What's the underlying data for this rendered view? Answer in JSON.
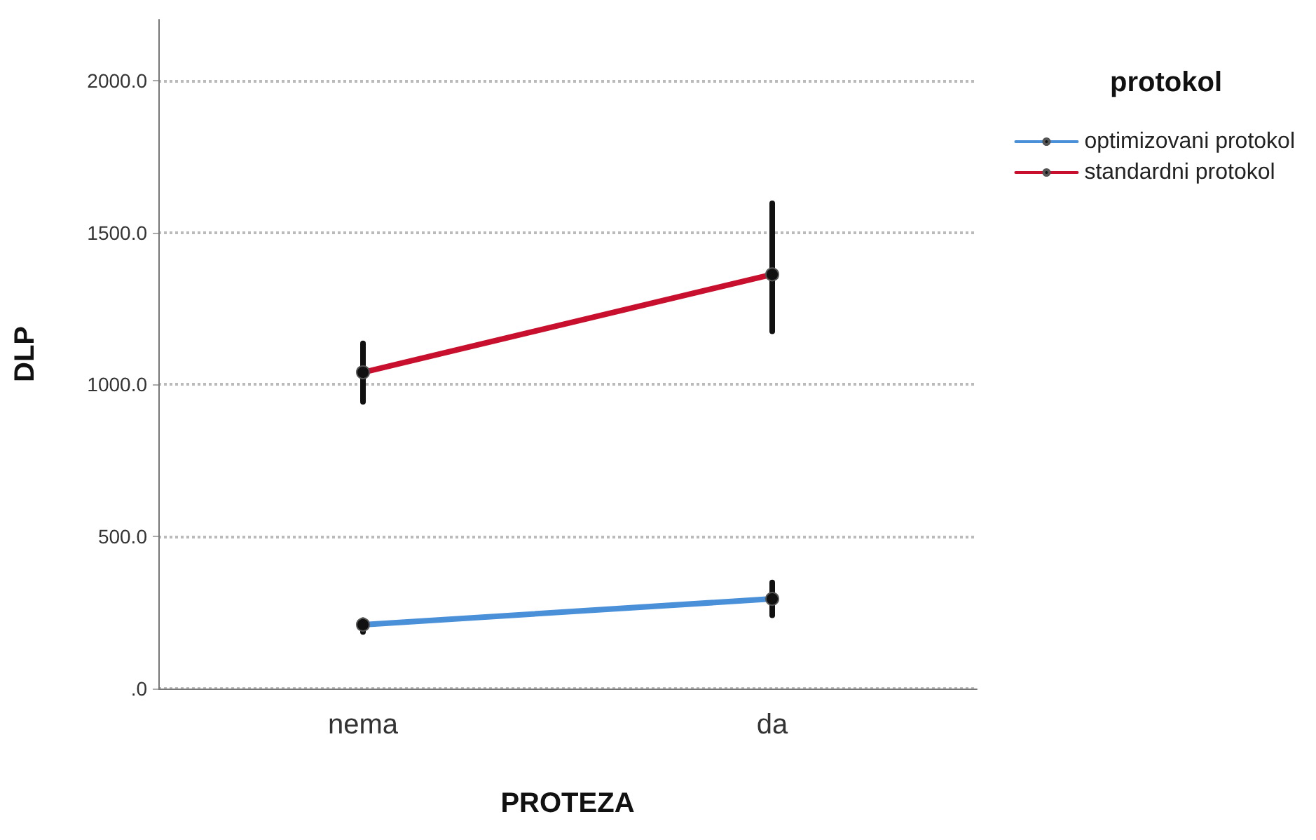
{
  "chart_data": {
    "type": "line",
    "xlabel": "PROTEZA",
    "ylabel": "DLP",
    "legend_title": "protokol",
    "categories": [
      "nema",
      "da"
    ],
    "series": [
      {
        "name": "optimizovani protokol",
        "color": "#4a90d9",
        "values": [
          210,
          295
        ],
        "errors": [
          [
            186,
            225
          ],
          [
            241,
            349
          ]
        ]
      },
      {
        "name": "standardni protokol",
        "color": "#c8102e",
        "values": [
          1040,
          1362
        ],
        "errors": [
          [
            943,
            1135
          ],
          [
            1175,
            1596
          ]
        ]
      }
    ],
    "ylim": [
      0,
      2200
    ],
    "yticks": [
      {
        "value": 0,
        "label": ".0"
      },
      {
        "value": 500,
        "label": "500.0"
      },
      {
        "value": 1000,
        "label": "1000.0"
      },
      {
        "value": 1500,
        "label": "1500.0"
      },
      {
        "value": 2000,
        "label": "2000.0"
      }
    ],
    "grid": "y",
    "legend": "right",
    "marker": "circle",
    "line_style": "solid"
  }
}
